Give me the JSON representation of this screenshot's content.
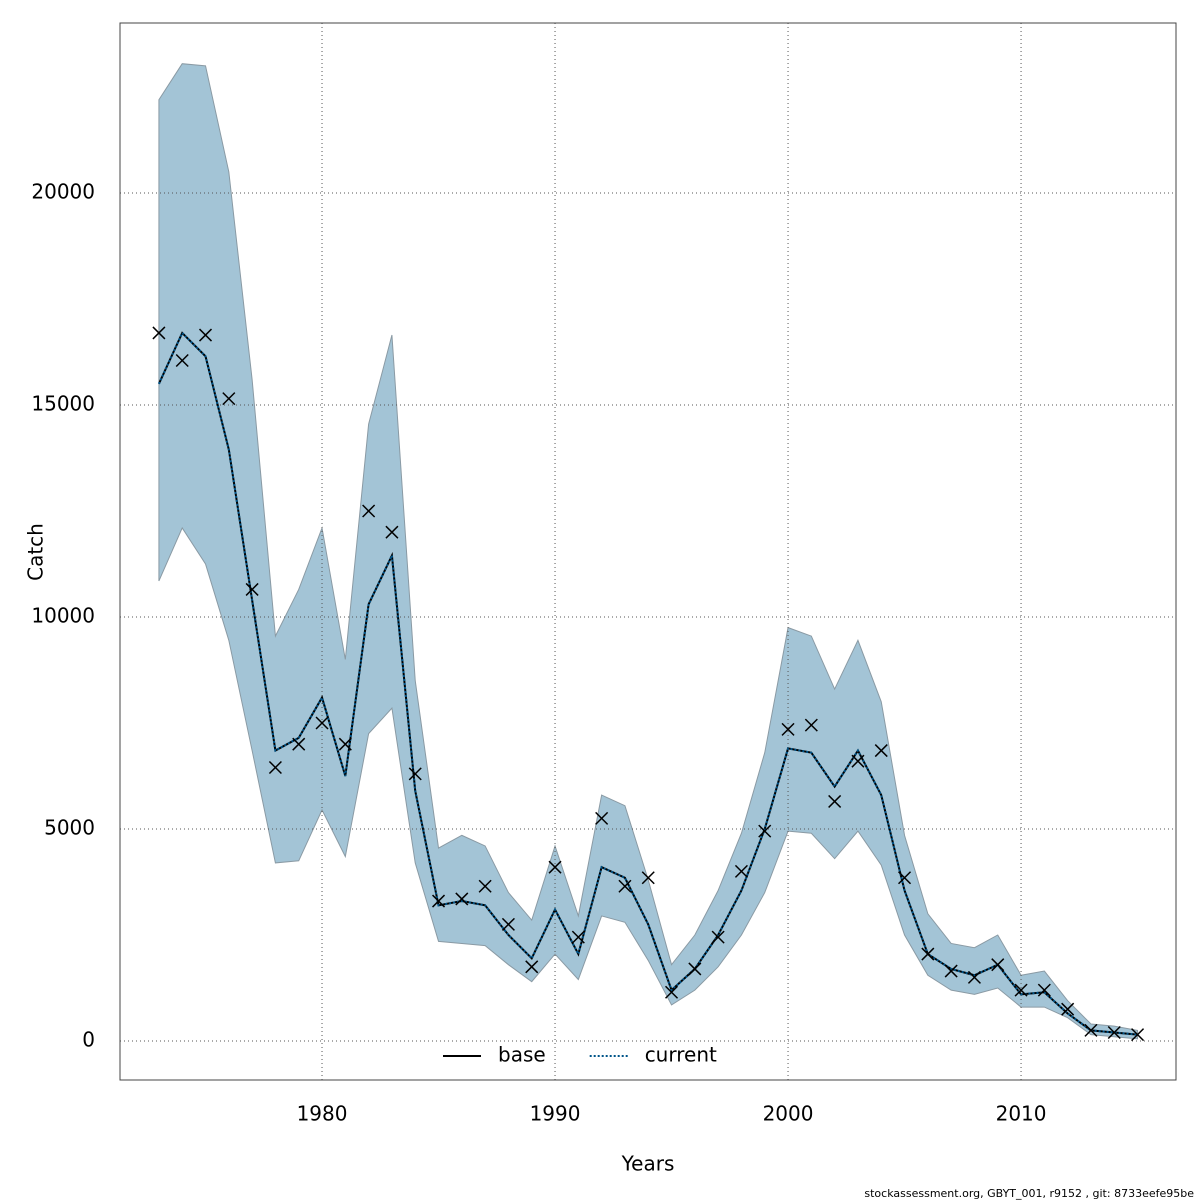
{
  "chart_data": {
    "type": "line",
    "xlabel": "Years",
    "ylabel": "Catch",
    "footer": "stockassessment.org, GBYT_001, r9152 , git: 8733eefe95be",
    "x": [
      1973,
      1974,
      1975,
      1976,
      1977,
      1978,
      1979,
      1980,
      1981,
      1982,
      1983,
      1984,
      1985,
      1986,
      1987,
      1988,
      1989,
      1990,
      1991,
      1992,
      1993,
      1994,
      1995,
      1996,
      1997,
      1998,
      1999,
      2000,
      2001,
      2002,
      2003,
      2004,
      2005,
      2006,
      2007,
      2008,
      2009,
      2010,
      2011,
      2012,
      2013,
      2014,
      2015
    ],
    "series": [
      {
        "name": "base",
        "color": "#000000",
        "dash": "solid",
        "values": [
          15500,
          16700,
          16150,
          13950,
          10400,
          6850,
          7150,
          8100,
          6250,
          10300,
          11450,
          5900,
          3200,
          3300,
          3200,
          2500,
          1950,
          3100,
          2050,
          4100,
          3850,
          2750,
          1200,
          1700,
          2500,
          3550,
          5000,
          6900,
          6800,
          6000,
          6850,
          5800,
          3550,
          2050,
          1700,
          1550,
          1800,
          1100,
          1150,
          650,
          250,
          200,
          150
        ]
      },
      {
        "name": "current",
        "color": "#00558a",
        "dash": "dotted",
        "values": [
          15500,
          16700,
          16150,
          13950,
          10400,
          6850,
          7150,
          8100,
          6250,
          10300,
          11450,
          5900,
          3200,
          3300,
          3200,
          2500,
          1950,
          3100,
          2050,
          4100,
          3850,
          2750,
          1200,
          1700,
          2500,
          3550,
          5000,
          6900,
          6800,
          6000,
          6850,
          5800,
          3550,
          2050,
          1700,
          1550,
          1800,
          1100,
          1150,
          650,
          250,
          200,
          150
        ]
      }
    ],
    "band": {
      "color": "#a3c4d6",
      "upper": [
        22200,
        23050,
        23000,
        20500,
        15600,
        9550,
        10650,
        12100,
        9000,
        14550,
        16650,
        8500,
        4550,
        4850,
        4600,
        3500,
        2850,
        4600,
        2950,
        5800,
        5550,
        3800,
        1800,
        2500,
        3550,
        4900,
        6800,
        9750,
        9550,
        8300,
        9450,
        8000,
        4850,
        3000,
        2300,
        2200,
        2500,
        1550,
        1650,
        950,
        400,
        350,
        250
      ],
      "lower": [
        10850,
        12100,
        11250,
        9450,
        6850,
        4200,
        4250,
        5450,
        4350,
        7250,
        7850,
        4200,
        2350,
        2300,
        2250,
        1800,
        1400,
        2050,
        1450,
        2950,
        2800,
        1900,
        850,
        1200,
        1750,
        2500,
        3500,
        4950,
        4900,
        4300,
        4950,
        4150,
        2500,
        1550,
        1200,
        1100,
        1250,
        800,
        800,
        550,
        150,
        100,
        50
      ]
    },
    "observed": {
      "marker": "x",
      "color": "#000000",
      "values": [
        16700,
        16050,
        16650,
        15150,
        10650,
        6450,
        7000,
        7500,
        7000,
        12500,
        12000,
        6300,
        3300,
        3350,
        3650,
        2750,
        1750,
        4100,
        2450,
        5250,
        3650,
        3850,
        1150,
        1700,
        2450,
        4000,
        4950,
        7350,
        7450,
        5650,
        6600,
        6850,
        3850,
        2050,
        1650,
        1500,
        1800,
        1200,
        1200,
        750,
        250,
        200,
        150
      ]
    },
    "xlim": [
      1971.33,
      2016.65
    ],
    "ylim": [
      -920,
      24010
    ],
    "xticks": [
      1980,
      1990,
      2000,
      2010
    ],
    "yticks": [
      0,
      5000,
      10000,
      15000,
      20000
    ],
    "grid": true,
    "legend": "bottom"
  }
}
